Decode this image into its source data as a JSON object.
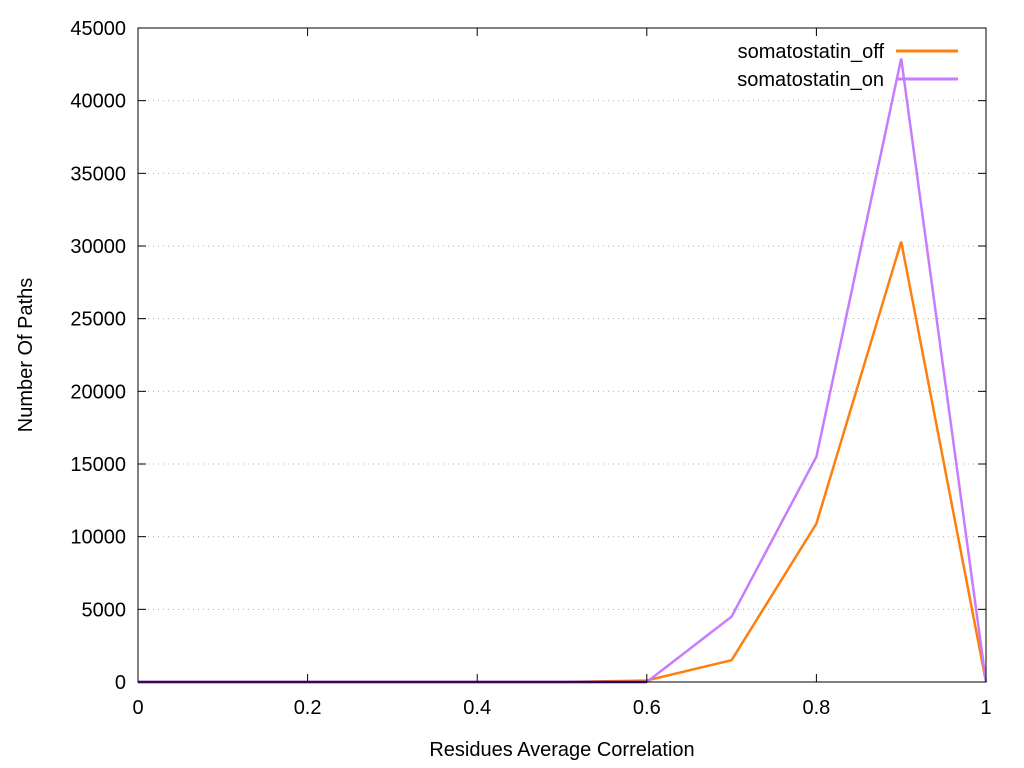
{
  "chart_data": {
    "type": "line",
    "title": "",
    "xlabel": "Residues Average Correlation",
    "ylabel": "Number Of Paths",
    "xlim": [
      0,
      1
    ],
    "ylim": [
      0,
      45000
    ],
    "x_ticks": [
      0,
      0.2,
      0.4,
      0.6,
      0.8,
      1
    ],
    "x_tick_labels": [
      "0",
      "0.2",
      "0.4",
      "0.6",
      "0.8",
      "1"
    ],
    "y_ticks": [
      0,
      5000,
      10000,
      15000,
      20000,
      25000,
      30000,
      35000,
      40000,
      45000
    ],
    "y_tick_labels": [
      "0",
      "5000",
      "10000",
      "15000",
      "20000",
      "25000",
      "30000",
      "35000",
      "40000",
      "45000"
    ],
    "grid": "horizontal dotted",
    "legend_position": "top-right",
    "x": [
      0,
      0.1,
      0.2,
      0.3,
      0.4,
      0.5,
      0.6,
      0.7,
      0.8,
      0.9,
      1.0
    ],
    "series": [
      {
        "name": "somatostatin_off",
        "color": "#ff7f0e",
        "values": [
          0,
          0,
          0,
          0,
          0,
          0,
          100,
          1500,
          10900,
          30300,
          0
        ]
      },
      {
        "name": "somatostatin_on",
        "color": "#c77cff",
        "values": [
          0,
          0,
          0,
          0,
          0,
          0,
          0,
          4500,
          15500,
          42900,
          0
        ]
      }
    ],
    "baseline_color": "#5a1aa0"
  }
}
